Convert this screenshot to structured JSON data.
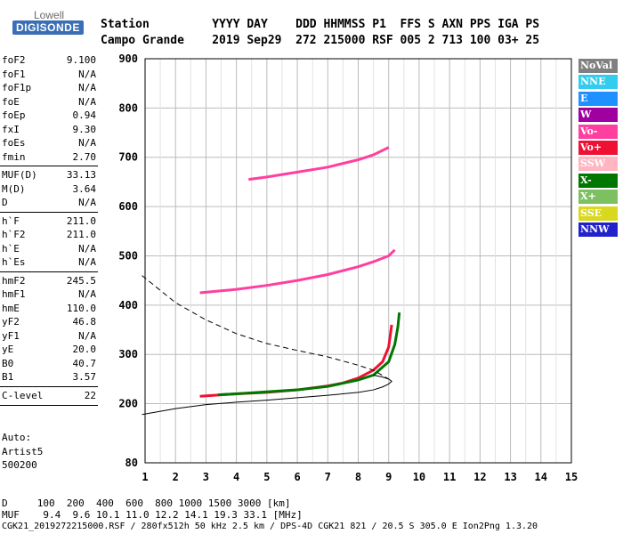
{
  "logo": {
    "top": "Lowell",
    "main": "DIGISONDE"
  },
  "header": {
    "row1": "Station         YYYY DAY    DDD HHMMSS P1  FFS S AXN PPS IGA PS",
    "row2": "Campo Grande    2019 Sep29  272 215000 RSF 005 2 713 100 03+ 25"
  },
  "params": [
    {
      "key": "foF2",
      "value": "9.100"
    },
    {
      "key": "foF1",
      "value": "N/A"
    },
    {
      "key": "foF1p",
      "value": "N/A"
    },
    {
      "key": "foE",
      "value": "N/A"
    },
    {
      "key": "foEp",
      "value": "0.94"
    },
    {
      "key": "fxI",
      "value": "9.30"
    },
    {
      "key": "foEs",
      "value": "N/A"
    },
    {
      "key": "fmin",
      "value": "2.70"
    },
    {
      "key": "MUF(D)",
      "value": "33.13"
    },
    {
      "key": "M(D)",
      "value": "3.64"
    },
    {
      "key": "D",
      "value": "N/A"
    },
    {
      "key": "h`F",
      "value": "211.0"
    },
    {
      "key": "h`F2",
      "value": "211.0"
    },
    {
      "key": "h`E",
      "value": "N/A"
    },
    {
      "key": "h`Es",
      "value": "N/A"
    },
    {
      "key": "hmF2",
      "value": "245.5"
    },
    {
      "key": "hmF1",
      "value": "N/A"
    },
    {
      "key": "hmE",
      "value": "110.0"
    },
    {
      "key": "yF2",
      "value": "46.8"
    },
    {
      "key": "yF1",
      "value": "N/A"
    },
    {
      "key": "yE",
      "value": "20.0"
    },
    {
      "key": "B0",
      "value": "40.7"
    },
    {
      "key": "B1",
      "value": "3.57"
    },
    {
      "key": "C-level",
      "value": "22"
    }
  ],
  "auto": {
    "line1": "Auto:",
    "line2": "Artist5",
    "line3": "500200"
  },
  "legend": [
    {
      "label": "NoVal",
      "color": "#808080"
    },
    {
      "label": "NNE",
      "color": "#33ccee"
    },
    {
      "label": "E",
      "color": "#1e90ff"
    },
    {
      "label": "W",
      "color": "#a000a0"
    },
    {
      "label": "Vo-",
      "color": "#ff3fa0"
    },
    {
      "label": "Vo+",
      "color": "#ee1133"
    },
    {
      "label": "SSW",
      "color": "#ffb6c1"
    },
    {
      "label": "X-",
      "color": "#007700"
    },
    {
      "label": "X+",
      "color": "#7cc060"
    },
    {
      "label": "SSE",
      "color": "#d8d820"
    },
    {
      "label": "NNW",
      "color": "#2222cc"
    }
  ],
  "chart_data": {
    "type": "scatter",
    "xlabel": "",
    "ylabel": "",
    "xlim": [
      1,
      15
    ],
    "ylim": [
      80,
      900
    ],
    "x_ticks": [
      1,
      2,
      3,
      4,
      5,
      6,
      7,
      8,
      9,
      10,
      11,
      12,
      13,
      14,
      15
    ],
    "y_ticks": [
      80,
      200,
      300,
      400,
      500,
      600,
      700,
      800,
      900
    ],
    "grid": true,
    "traces": [
      {
        "name": "Vo+",
        "x": [
          2.8,
          3.5,
          4.0,
          5.0,
          6.0,
          7.0,
          7.5,
          8.0,
          8.5,
          8.8,
          9.0,
          9.1
        ],
        "y": [
          215,
          218,
          220,
          223,
          228,
          236,
          242,
          252,
          268,
          285,
          315,
          360
        ]
      },
      {
        "name": "X-",
        "x": [
          3.4,
          4.0,
          5.0,
          6.0,
          7.0,
          8.0,
          8.5,
          9.0,
          9.2,
          9.3,
          9.35
        ],
        "y": [
          218,
          220,
          224,
          228,
          235,
          248,
          258,
          285,
          320,
          355,
          385
        ]
      },
      {
        "name": "Vo-",
        "x": [
          2.8,
          4.0,
          5.0,
          6.0,
          7.0,
          8.0,
          8.5,
          9.0,
          9.2
        ],
        "y": [
          425,
          432,
          440,
          450,
          462,
          478,
          488,
          500,
          512
        ]
      },
      {
        "name": "Vo-",
        "x": [
          4.4,
          5.0,
          6.0,
          7.0,
          8.0,
          8.5,
          9.0
        ],
        "y": [
          655,
          660,
          670,
          680,
          695,
          705,
          720
        ]
      }
    ],
    "profile_solid": {
      "x": [
        0.9,
        2.0,
        3.0,
        4.0,
        5.0,
        6.0,
        7.0,
        8.0,
        8.5,
        8.8,
        9.0,
        9.1,
        9.0,
        8.8,
        8.5
      ],
      "y": [
        178,
        190,
        198,
        203,
        207,
        212,
        217,
        223,
        228,
        234,
        240,
        245.5,
        250,
        254,
        258
      ]
    },
    "profile_dashed": {
      "x": [
        0.9,
        1.5,
        2.0,
        3.0,
        4.0,
        5.0,
        6.0,
        7.0,
        8.0,
        8.5,
        9.0
      ],
      "y": [
        460,
        430,
        405,
        370,
        342,
        322,
        308,
        295,
        278,
        268,
        250
      ]
    }
  },
  "footer": {
    "row1": "D     100  200  400  600  800 1000 1500 3000 [km]",
    "row2": "MUF    9.4  9.6 10.1 11.0 12.2 14.1 19.3 33.1 [MHz]",
    "row3": "CGK21_2019272215000.RSF / 280fx512h 50 kHz 2.5 km / DPS-4D CGK21 821 / 20.5 S 305.0 E Ion2Png 1.3.20"
  }
}
